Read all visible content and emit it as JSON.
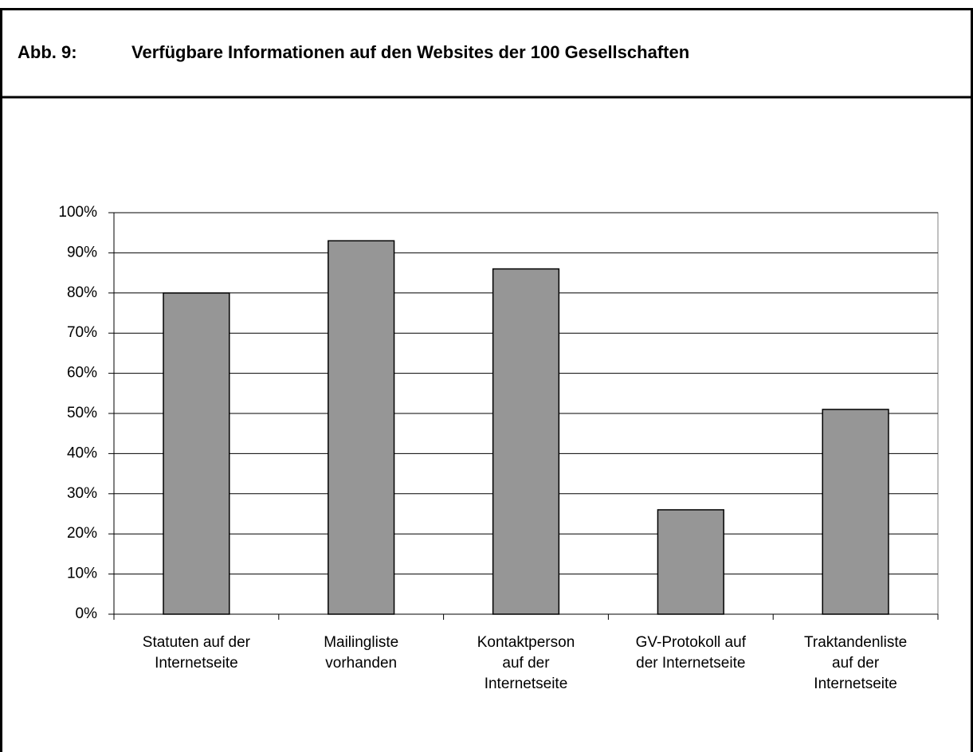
{
  "chart_data": {
    "type": "bar",
    "figure_label": "Abb. 9:",
    "title": "Verfügbare Informationen auf den Websites der 100 Gesellschaften",
    "categories": [
      "Statuten auf der\nInternetseite",
      "Mailingliste\nvorhanden",
      "Kontaktperson\nauf der\nInternetseite",
      "GV-Protokoll auf\nder Internetseite",
      "Traktandenliste\nauf der\nInternetseite"
    ],
    "values": [
      80,
      93,
      86,
      26,
      51
    ],
    "color": "#969696",
    "ylim": [
      0,
      100
    ],
    "yticks": [
      {
        "value": 0,
        "label": "0%"
      },
      {
        "value": 10,
        "label": "10%"
      },
      {
        "value": 20,
        "label": "20%"
      },
      {
        "value": 30,
        "label": "30%"
      },
      {
        "value": 40,
        "label": "40%"
      },
      {
        "value": 50,
        "label": "50%"
      },
      {
        "value": 60,
        "label": "60%"
      },
      {
        "value": 70,
        "label": "70%"
      },
      {
        "value": 80,
        "label": "80%"
      },
      {
        "value": 90,
        "label": "90%"
      },
      {
        "value": 100,
        "label": "100%"
      }
    ],
    "grid": true
  }
}
